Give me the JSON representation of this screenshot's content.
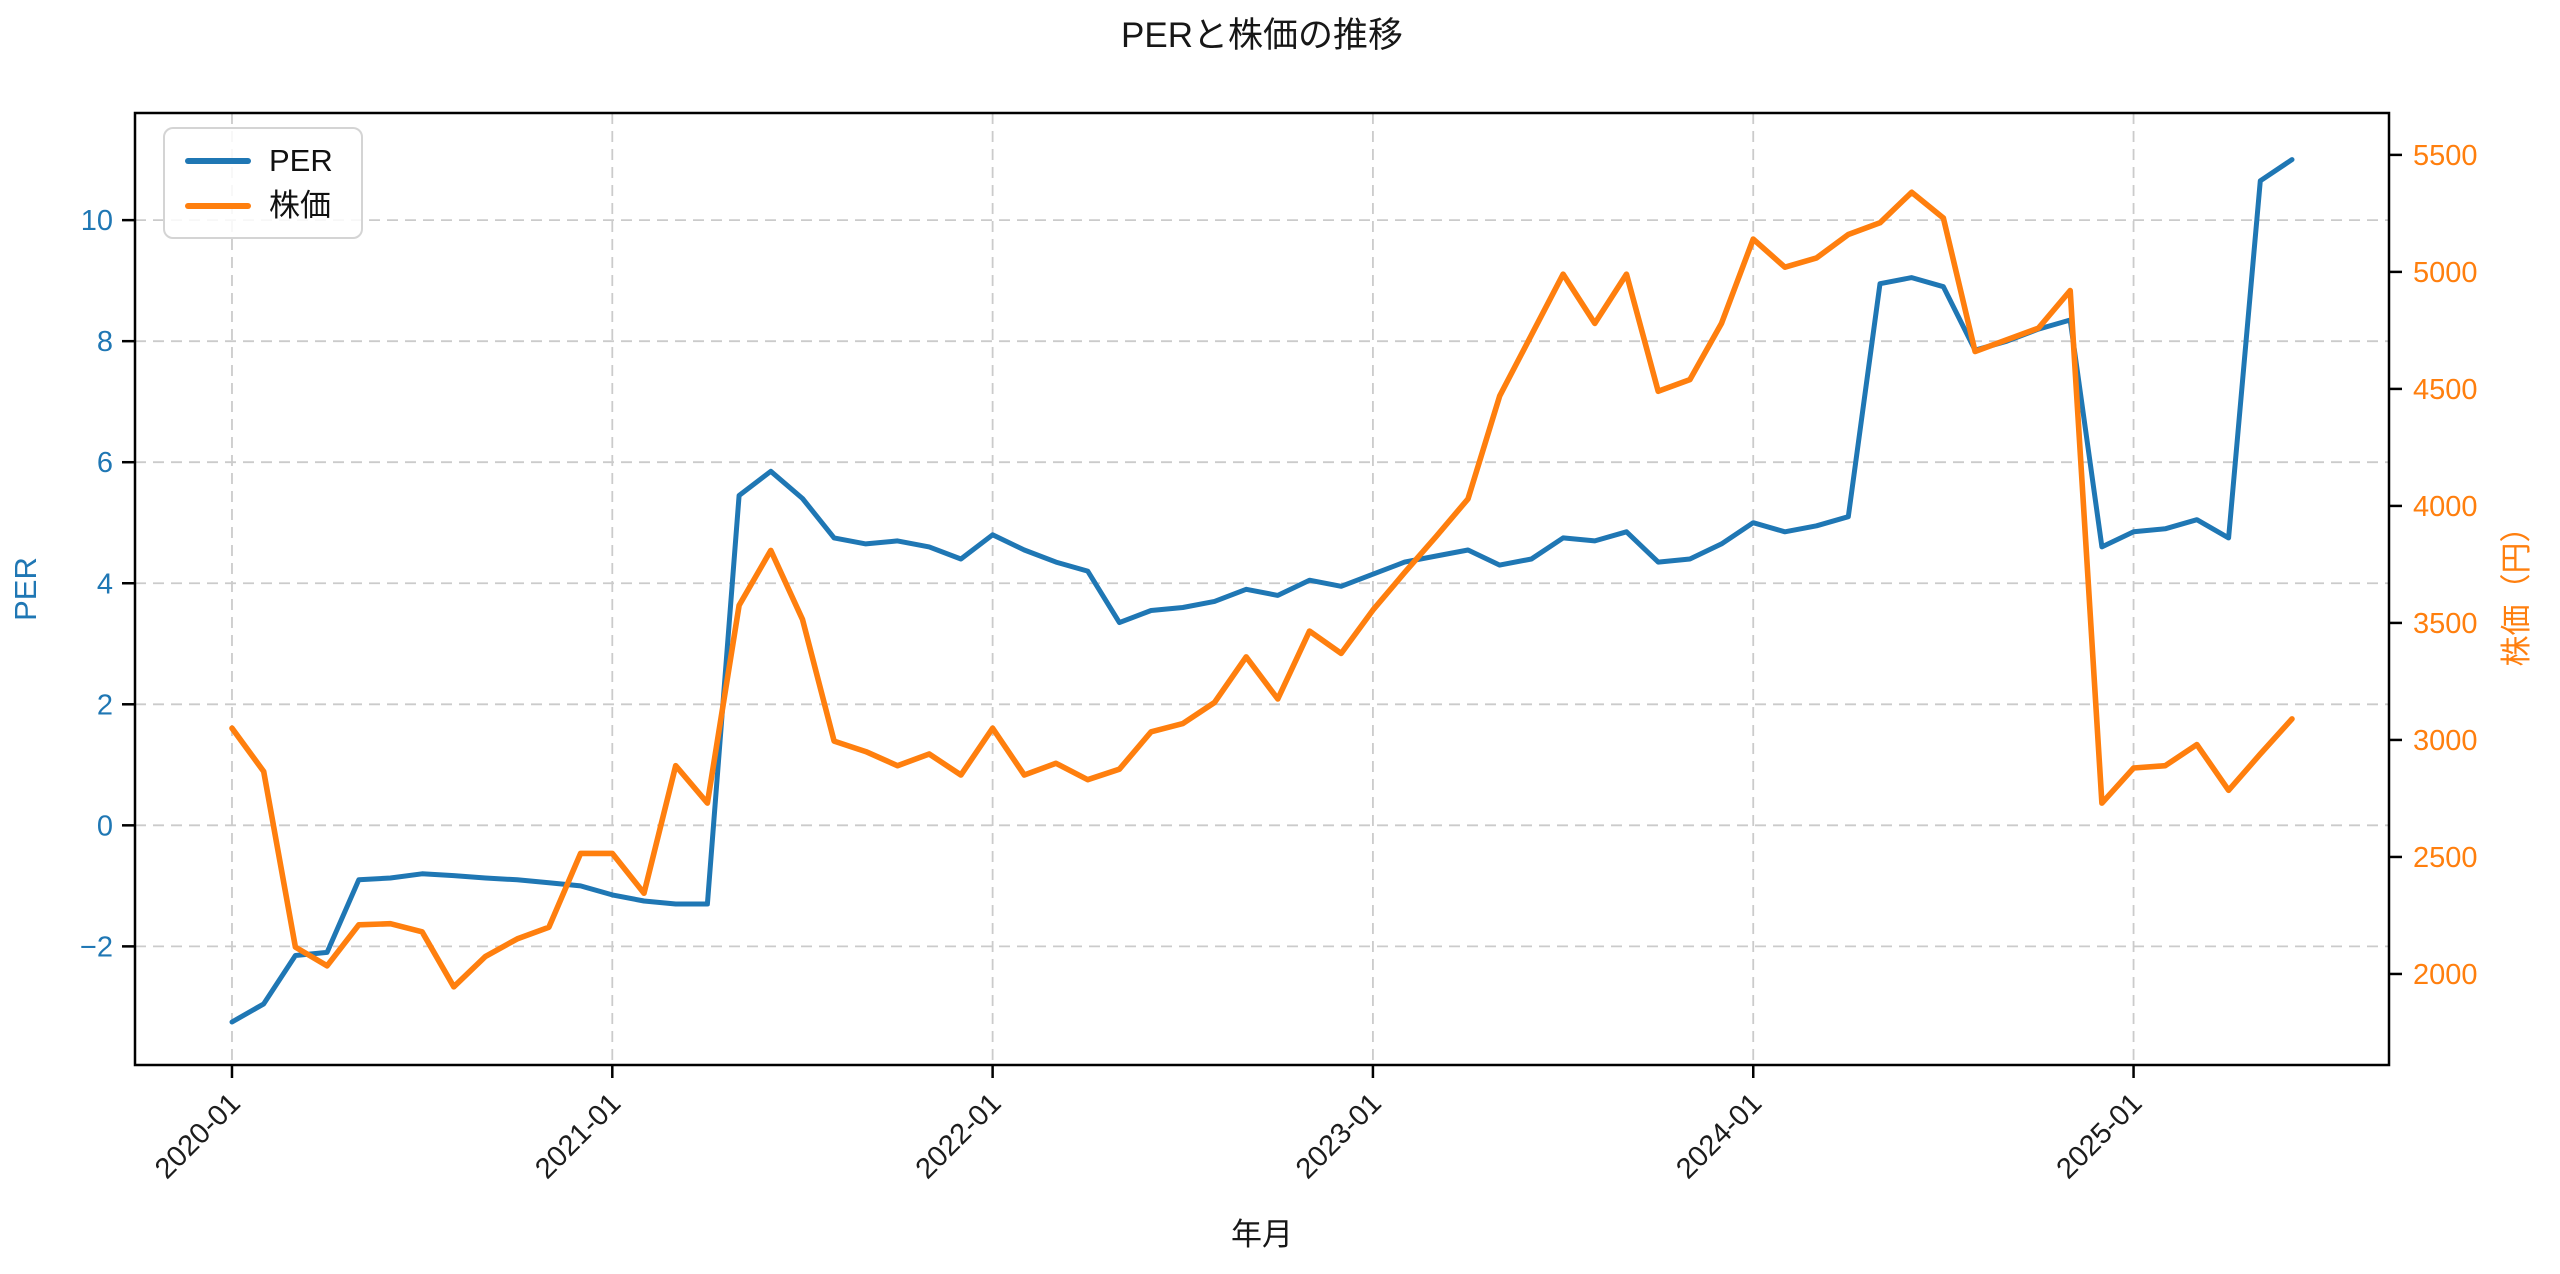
{
  "chart_data": {
    "type": "line",
    "title": "PERと株価の推移",
    "xlabel": "年月",
    "ylabel_left": "PER",
    "ylabel_right": "株価（円）",
    "grid": true,
    "legend_position": "upper left",
    "x_monthly": {
      "start": "2020-01",
      "end": "2025-06"
    },
    "x_axis": {
      "tick_month_indices": [
        0,
        12,
        24,
        36,
        48,
        60
      ],
      "tick_labels": [
        "2020-01",
        "2021-01",
        "2022-01",
        "2023-01",
        "2024-01",
        "2025-01"
      ]
    },
    "left_axis": {
      "tick_values": [
        -2,
        0,
        2,
        4,
        6,
        8,
        10
      ],
      "tick_labels": [
        "−2",
        "0",
        "2",
        "4",
        "6",
        "8",
        "10"
      ],
      "range": [
        -3.96,
        11.77
      ],
      "color": "#1f77b4"
    },
    "right_axis": {
      "tick_values": [
        2000,
        2500,
        3000,
        3500,
        4000,
        4500,
        5000,
        5500
      ],
      "tick_labels": [
        "2000",
        "2500",
        "3000",
        "3500",
        "4000",
        "4500",
        "5000",
        "5500"
      ],
      "range": [
        1611,
        5679
      ],
      "color": "#ff7f0e"
    },
    "series": [
      {
        "name": "PER",
        "axis": "left",
        "color": "#1f77b4",
        "values": [
          -3.25,
          -2.95,
          -2.15,
          -2.1,
          -0.9,
          -0.87,
          -0.8,
          -0.83,
          -0.87,
          -0.9,
          -0.95,
          -1.0,
          -1.15,
          -1.25,
          -1.3,
          -1.3,
          5.45,
          5.85,
          5.4,
          4.75,
          4.65,
          4.7,
          4.6,
          4.4,
          4.8,
          4.55,
          4.35,
          4.2,
          3.35,
          3.55,
          3.6,
          3.7,
          3.9,
          3.8,
          4.05,
          3.95,
          4.15,
          4.35,
          4.45,
          4.55,
          4.3,
          4.4,
          4.75,
          4.7,
          4.85,
          4.35,
          4.4,
          4.65,
          5.0,
          4.85,
          4.95,
          5.1,
          8.95,
          9.05,
          8.9,
          7.85,
          8.0,
          8.2,
          8.35,
          4.6,
          4.85,
          4.9,
          5.05,
          4.75,
          10.65,
          11.0
        ]
      },
      {
        "name": "株価",
        "axis": "right",
        "color": "#ff7f0e",
        "values": [
          3050,
          2865,
          2115,
          2035,
          2210,
          2215,
          2180,
          1945,
          2075,
          2150,
          2200,
          2515,
          2515,
          2345,
          2890,
          2730,
          3575,
          3810,
          3515,
          2995,
          2950,
          2890,
          2940,
          2850,
          3050,
          2850,
          2900,
          2830,
          2875,
          3035,
          3070,
          3160,
          3355,
          3175,
          3465,
          3370,
          3555,
          3715,
          3870,
          4030,
          4470,
          4730,
          4990,
          4780,
          4990,
          4490,
          4540,
          4780,
          5140,
          5020,
          5060,
          5160,
          5210,
          5340,
          5230,
          4660,
          4710,
          4760,
          4920,
          2730,
          2880,
          2890,
          2980,
          2785,
          2940,
          3090
        ]
      }
    ]
  }
}
